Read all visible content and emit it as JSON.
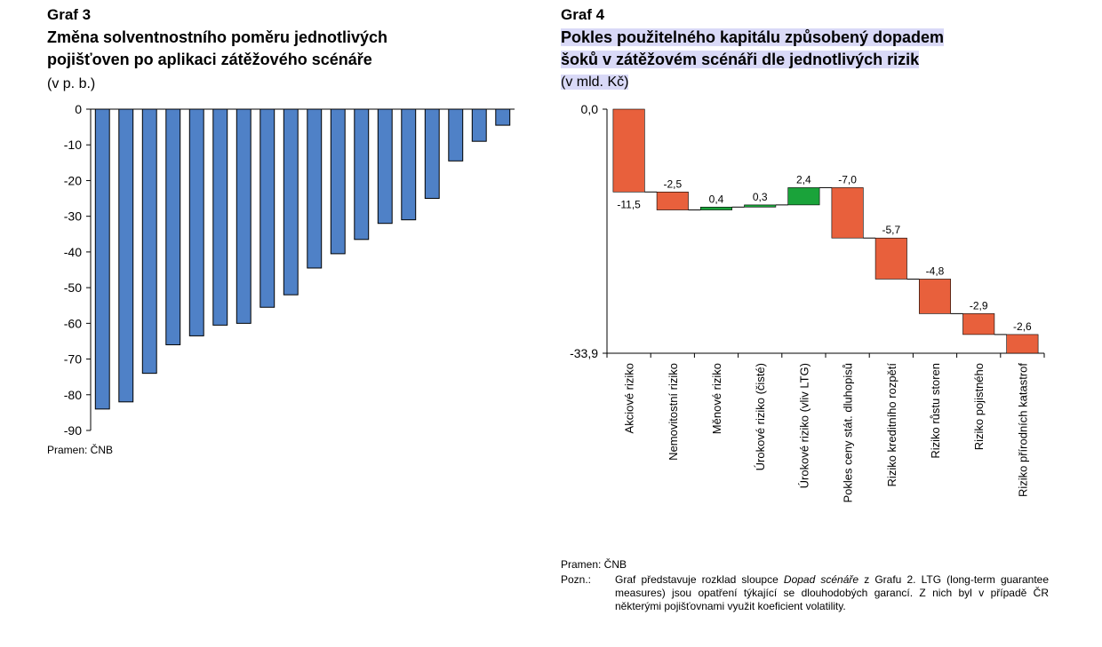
{
  "graf3": {
    "label": "Graf 3",
    "title_lines": [
      "Změna solventnostního poměru jednotlivých",
      "pojišťoven po aplikaci zátěžového scénáře"
    ],
    "unit": "(v p. b.)",
    "source": "Pramen:  ČNB"
  },
  "graf4": {
    "label": "Graf 4",
    "title_lines": [
      "Pokles použitelného kapitálu způsobený dopadem",
      "šoků v zátěžovém scénáři dle jednotlivých rizik"
    ],
    "unit": "(v mld. Kč)",
    "source": "Pramen:  ČNB",
    "note_label": "Pozn.:",
    "note_parts": [
      {
        "t": "Graf představuje rozklad sloupce ",
        "i": false
      },
      {
        "t": "Dopad scénáře",
        "i": true
      },
      {
        "t": " z Grafu 2. LTG (long-term guarantee measures) jsou opatření týkající se dlouhodobých garancí. Z nich byl v případě ČR některými pojišťovnami využit koeficient volatility.",
        "i": false
      }
    ]
  },
  "colors": {
    "bar_blue": "#4f81c7",
    "waterfall_red": "#e8603c",
    "waterfall_green": "#1aa33a",
    "highlight": "#d9d9f7"
  },
  "chart_data": [
    {
      "type": "bar",
      "values": [
        -84,
        -82,
        -74,
        -66,
        -63.5,
        -60.5,
        -60,
        -55.5,
        -52,
        -44.5,
        -40.5,
        -36.5,
        -32,
        -31,
        -25,
        -14.5,
        -9,
        -4.5
      ],
      "ylim": [
        -90,
        0
      ],
      "yticks": [
        0,
        -10,
        -20,
        -30,
        -40,
        -50,
        -60,
        -70,
        -80,
        -90
      ],
      "grid": false
    },
    {
      "type": "bar",
      "subtype": "waterfall",
      "categories": [
        "Akciové riziko",
        "Nemovitostní riziko",
        "Měnové riziko",
        "Úrokové riziko (čisté)",
        "Úrokové riziko (vliv LTG)",
        "Pokles ceny stát. dluhopisů",
        "Riziko kreditního rozpětí",
        "Riziko růstu storen",
        "Riziko pojistného",
        "Riziko přírodních katastrof"
      ],
      "values": [
        -11.5,
        -2.5,
        0.4,
        0.3,
        2.4,
        -7.0,
        -5.7,
        -4.8,
        -2.9,
        -2.6
      ],
      "data_labels": [
        "-11,5",
        "-2,5",
        "0,4",
        "0,3",
        "2,4",
        "-7,0",
        "-5,7",
        "-4,8",
        "-2,9",
        "-2,6"
      ],
      "ylim": [
        -33.9,
        0
      ],
      "ytick_labels": [
        "0,0",
        "-33,9"
      ],
      "grid": false
    }
  ]
}
